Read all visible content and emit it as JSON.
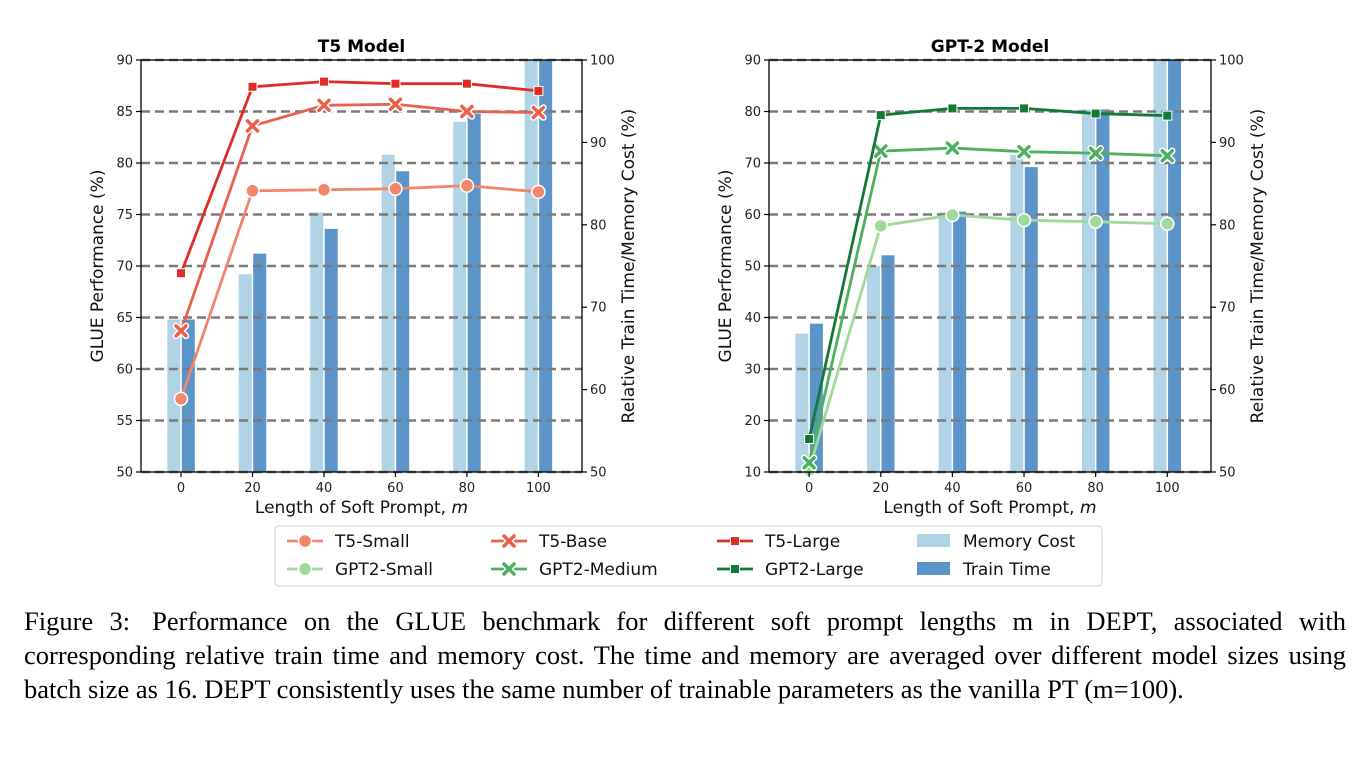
{
  "chart_data": [
    {
      "type": "bar+line",
      "title": "T5 Model",
      "xlabel": "Length of Soft Prompt, m",
      "ylabel": "GLUE Performance (%)",
      "y2label": "Relative Train Time/Memory Cost (%)",
      "categories": [
        "0",
        "20",
        "40",
        "60",
        "80",
        "100"
      ],
      "ylim": [
        50,
        90
      ],
      "yticks": [
        50,
        55,
        60,
        65,
        70,
        75,
        80,
        85,
        90
      ],
      "y2lim": [
        50,
        100
      ],
      "y2ticks": [
        50,
        60,
        70,
        80,
        90,
        100
      ],
      "series": [
        {
          "name": "T5-Small",
          "axis": "left",
          "marker": "circle",
          "color": "#f0876a",
          "values": [
            57.1,
            77.3,
            77.4,
            77.5,
            77.8,
            77.2
          ]
        },
        {
          "name": "T5-Base",
          "axis": "left",
          "marker": "x",
          "color": "#e9614a",
          "values": [
            63.7,
            83.6,
            85.6,
            85.7,
            85.0,
            84.9
          ]
        },
        {
          "name": "T5-Large",
          "axis": "left",
          "marker": "square",
          "color": "#de2d26",
          "values": [
            69.3,
            87.4,
            87.9,
            87.7,
            87.7,
            87.0
          ]
        }
      ],
      "bars": [
        {
          "name": "Memory Cost",
          "axis": "right",
          "color": "#b0d4e6",
          "values": [
            68.5,
            74.0,
            81.5,
            88.5,
            92.5,
            100
          ]
        },
        {
          "name": "Train Time",
          "axis": "right",
          "color": "#5a94c9",
          "values": [
            68.5,
            76.5,
            79.5,
            86.5,
            93.5,
            100
          ]
        }
      ],
      "grid": "horizontal dashed"
    },
    {
      "type": "bar+line",
      "title": "GPT-2 Model",
      "xlabel": "Length of Soft Prompt, m",
      "ylabel": "GLUE Performance (%)",
      "y2label": "Relative Train Time/Memory Cost (%)",
      "categories": [
        "0",
        "20",
        "40",
        "60",
        "80",
        "100"
      ],
      "ylim": [
        10,
        90
      ],
      "yticks": [
        10,
        20,
        30,
        40,
        50,
        60,
        70,
        80,
        90
      ],
      "y2lim": [
        50,
        100
      ],
      "y2ticks": [
        50,
        60,
        70,
        80,
        90,
        100
      ],
      "series": [
        {
          "name": "GPT2-Small",
          "axis": "left",
          "marker": "circle",
          "color": "#a1d99b",
          "values": [
            10.4,
            57.8,
            59.9,
            58.9,
            58.6,
            58.2
          ]
        },
        {
          "name": "GPT2-Medium",
          "axis": "left",
          "marker": "x",
          "color": "#4cb060",
          "values": [
            11.8,
            72.3,
            72.9,
            72.2,
            71.9,
            71.4
          ]
        },
        {
          "name": "GPT2-Large",
          "axis": "left",
          "marker": "square",
          "color": "#137a35",
          "values": [
            16.4,
            79.3,
            80.6,
            80.6,
            79.6,
            79.2
          ]
        }
      ],
      "bars": [
        {
          "name": "Memory Cost",
          "axis": "right",
          "color": "#b0d4e6",
          "values": [
            66.8,
            75.0,
            81.5,
            88.5,
            94.0,
            100
          ]
        },
        {
          "name": "Train Time",
          "axis": "right",
          "color": "#5a94c9",
          "values": [
            68.0,
            76.3,
            81.6,
            87.0,
            94.0,
            100
          ]
        }
      ],
      "grid": "horizontal dashed"
    }
  ],
  "legend": {
    "placement": "bottom-center",
    "items": [
      {
        "name": "T5-Small",
        "marker": "circle",
        "color": "#f0876a"
      },
      {
        "name": "T5-Base",
        "marker": "x",
        "color": "#e9614a"
      },
      {
        "name": "T5-Large",
        "marker": "square",
        "color": "#de2d26"
      },
      {
        "name": "Memory Cost",
        "marker": "patch",
        "color": "#b0d4e6"
      },
      {
        "name": "GPT2-Small",
        "marker": "circle",
        "color": "#a1d99b"
      },
      {
        "name": "GPT2-Medium",
        "marker": "x",
        "color": "#4cb060"
      },
      {
        "name": "GPT2-Large",
        "marker": "square",
        "color": "#137a35"
      },
      {
        "name": "Train Time",
        "marker": "patch",
        "color": "#5a94c9"
      }
    ]
  },
  "caption": {
    "label": "Figure 3:",
    "text": "Performance on the GLUE benchmark for different soft prompt lengths m in DEPT, associated with corresponding relative train time and memory cost. The time and memory are averaged over different model sizes using batch size as 16. DEPT consistently uses the same number of trainable parameters as the vanilla PT (m=100)."
  }
}
